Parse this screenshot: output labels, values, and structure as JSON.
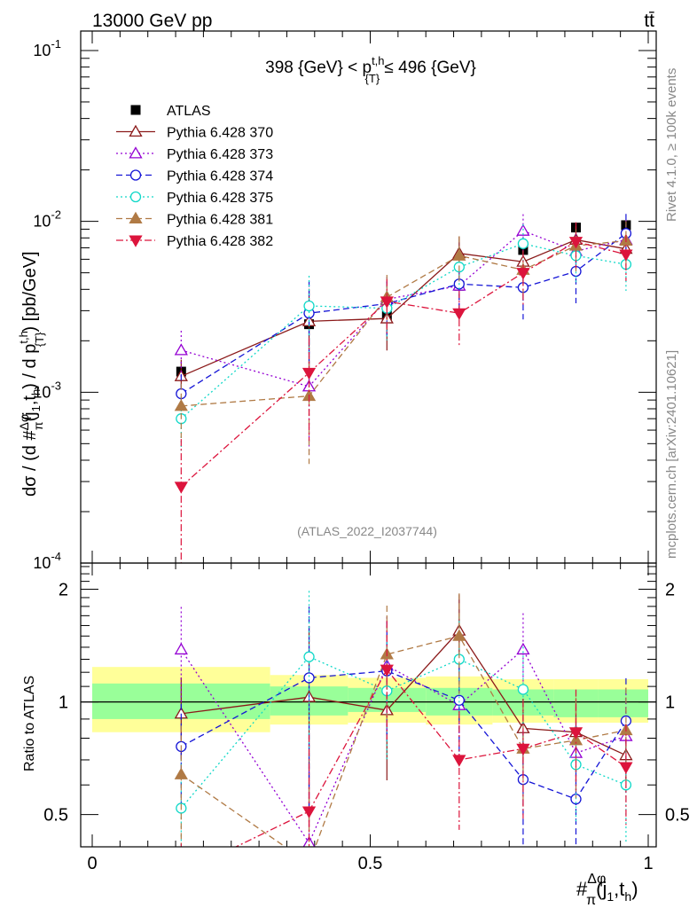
{
  "header": {
    "left": "13000 GeV pp",
    "right": "tt̄",
    "side_right_top": "Rivet 4.1.0, ≥ 100k events",
    "side_right_bottom": "mcplots.cern.ch [arXiv:2401.10621]",
    "watermark": "(ATLAS_2022_I2037744)",
    "range_label": "398 {GeV} < p{T}t,h ≤ 496 {GeV}"
  },
  "axes": {
    "y_main_label": "dσ / (d #Δφ/π(j1,th) / d p{T}t,h) [pb/GeV]",
    "y_ratio_label": "Ratio to ATLAS",
    "x_label": "#Δφ/π(j1,th)",
    "main_ticks": [
      "10^-4",
      "10^-3",
      "10^-2",
      "10^-1"
    ],
    "ratio_ticks": [
      "0.5",
      "1",
      "2"
    ],
    "x_ticks": [
      "0",
      "0.5",
      "1"
    ]
  },
  "chart_data": {
    "type": "scatter",
    "title": "398 {GeV} < p_{T}^{t,h} ≤ 496 {GeV}",
    "xlabel": "#Δφ/π(j_1,t_h)",
    "ylabel": "dσ / (d #Δφ/π(j_1,t_h) / d p_{T}^{t,h}) [pb/GeV]",
    "xlim": [
      0,
      1
    ],
    "ylim": [
      0.0001,
      0.13
    ],
    "ratio_ylim": [
      0.41,
      2.35
    ],
    "y_scale": "log",
    "legend_position": "top-left",
    "x": [
      0.16,
      0.39,
      0.53,
      0.66,
      0.775,
      0.87,
      0.96
    ],
    "bins": [
      [
        0.0,
        0.32
      ],
      [
        0.32,
        0.46
      ],
      [
        0.46,
        0.6
      ],
      [
        0.6,
        0.72
      ],
      [
        0.72,
        0.83
      ],
      [
        0.83,
        0.91
      ],
      [
        0.91,
        1.0
      ]
    ],
    "band_inner": [
      [
        0.9,
        1.12
      ],
      [
        0.92,
        1.1
      ],
      [
        0.94,
        1.09
      ],
      [
        0.92,
        1.09
      ],
      [
        0.92,
        1.08
      ],
      [
        0.91,
        1.08
      ],
      [
        0.91,
        1.08
      ]
    ],
    "band_outer": [
      [
        0.83,
        1.24
      ],
      [
        0.87,
        1.18
      ],
      [
        0.88,
        1.16
      ],
      [
        0.87,
        1.17
      ],
      [
        0.88,
        1.15
      ],
      [
        0.88,
        1.15
      ],
      [
        0.88,
        1.15
      ]
    ],
    "series": [
      {
        "name": "ATLAS",
        "color": "#000000",
        "marker": "square-filled",
        "line": "none",
        "values": [
          0.00132,
          0.0025,
          0.0028,
          0.0042,
          0.0068,
          0.0092,
          0.0095
        ],
        "ratio": [
          1,
          1,
          1,
          1,
          1,
          1,
          1
        ]
      },
      {
        "name": "Pythia 6.428 370",
        "color": "#8B1A1A",
        "marker": "triangle-up-open",
        "line": "solid",
        "values": [
          0.00124,
          0.0026,
          0.0027,
          0.0065,
          0.0058,
          0.0078,
          0.0069
        ],
        "ratio": [
          0.93,
          1.03,
          0.95,
          1.55,
          0.85,
          0.83,
          0.72
        ]
      },
      {
        "name": "Pythia 6.428 373",
        "color": "#9400D3",
        "marker": "triangle-up-open",
        "line": "dotted",
        "values": [
          0.00176,
          0.00108,
          0.0035,
          0.0042,
          0.0088,
          0.0067,
          0.0078
        ],
        "ratio": [
          1.38,
          0.42,
          1.25,
          0.98,
          1.38,
          0.73,
          0.81
        ]
      },
      {
        "name": "Pythia 6.428 374",
        "color": "#1515D6",
        "marker": "circle-open",
        "line": "dashed",
        "values": [
          0.00098,
          0.0029,
          0.0033,
          0.0043,
          0.0041,
          0.0051,
          0.0085
        ],
        "ratio": [
          0.76,
          1.16,
          1.21,
          1.01,
          0.62,
          0.55,
          0.89
        ]
      },
      {
        "name": "Pythia 6.428 375",
        "color": "#10D8C8",
        "marker": "circle-open",
        "line": "dotted",
        "values": [
          0.0007,
          0.0032,
          0.0031,
          0.0054,
          0.0074,
          0.0063,
          0.0056
        ],
        "ratio": [
          0.52,
          1.32,
          1.07,
          1.3,
          1.08,
          0.68,
          0.6
        ]
      },
      {
        "name": "Pythia 6.428 381",
        "color": "#B07A45",
        "marker": "triangle-up-filled",
        "line": "dashed",
        "values": [
          0.00083,
          0.00095,
          0.0036,
          0.0063,
          0.0052,
          0.0072,
          0.0077
        ],
        "ratio": [
          0.64,
          0.37,
          1.34,
          1.5,
          0.75,
          0.79,
          0.84
        ]
      },
      {
        "name": "Pythia 6.428 382",
        "color": "#DC143C",
        "marker": "triangle-down-filled",
        "line": "dashdot",
        "values": [
          0.00028,
          0.0013,
          0.0034,
          0.0029,
          0.005,
          0.0076,
          0.0064
        ],
        "ratio": [
          0.22,
          0.51,
          1.22,
          0.7,
          0.75,
          0.83,
          0.67
        ]
      }
    ],
    "error_frac": [
      [
        0.0,
        0.0,
        0.0,
        0.0,
        0.0,
        0.0,
        0.0
      ],
      [
        0.25,
        0.55,
        0.35,
        0.25,
        0.2,
        0.2,
        0.2
      ],
      [
        0.3,
        0.6,
        0.35,
        0.28,
        0.25,
        0.25,
        0.3
      ],
      [
        0.3,
        0.55,
        0.35,
        0.3,
        0.35,
        0.35,
        0.3
      ],
      [
        0.35,
        0.5,
        0.35,
        0.3,
        0.3,
        0.3,
        0.3
      ],
      [
        0.35,
        0.6,
        0.35,
        0.3,
        0.3,
        0.3,
        0.3
      ],
      [
        0.9,
        0.6,
        0.35,
        0.35,
        0.35,
        0.3,
        0.3
      ]
    ]
  }
}
